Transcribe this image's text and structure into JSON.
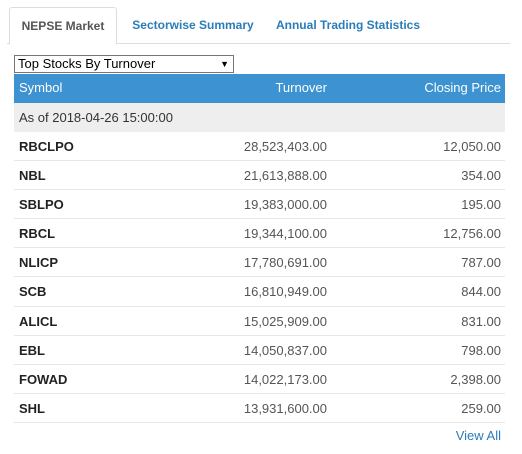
{
  "tabs": [
    {
      "label": "NEPSE Market",
      "active": true
    },
    {
      "label": "Sectorwise Summary",
      "active": false
    },
    {
      "label": "Annual Trading Statistics",
      "active": false
    }
  ],
  "selector": {
    "value": "Top Stocks By Turnover"
  },
  "table": {
    "headers": {
      "symbol": "Symbol",
      "turnover": "Turnover",
      "closing": "Closing Price"
    },
    "as_of": "As of 2018-04-26 15:00:00",
    "rows": [
      {
        "symbol": "RBCLPO",
        "turnover": "28,523,403.00",
        "closing": "12,050.00"
      },
      {
        "symbol": "NBL",
        "turnover": "21,613,888.00",
        "closing": "354.00"
      },
      {
        "symbol": "SBLPO",
        "turnover": "19,383,000.00",
        "closing": "195.00"
      },
      {
        "symbol": "RBCL",
        "turnover": "19,344,100.00",
        "closing": "12,756.00"
      },
      {
        "symbol": "NLICP",
        "turnover": "17,780,691.00",
        "closing": "787.00"
      },
      {
        "symbol": "SCB",
        "turnover": "16,810,949.00",
        "closing": "844.00"
      },
      {
        "symbol": "ALICL",
        "turnover": "15,025,909.00",
        "closing": "831.00"
      },
      {
        "symbol": "EBL",
        "turnover": "14,050,837.00",
        "closing": "798.00"
      },
      {
        "symbol": "FOWAD",
        "turnover": "14,022,173.00",
        "closing": "2,398.00"
      },
      {
        "symbol": "SHL",
        "turnover": "13,931,600.00",
        "closing": "259.00"
      }
    ]
  },
  "view_all": "View All",
  "colors": {
    "header_bg": "#3d92d1",
    "link": "#2a7db8",
    "asof_bg": "#eeeeee"
  }
}
